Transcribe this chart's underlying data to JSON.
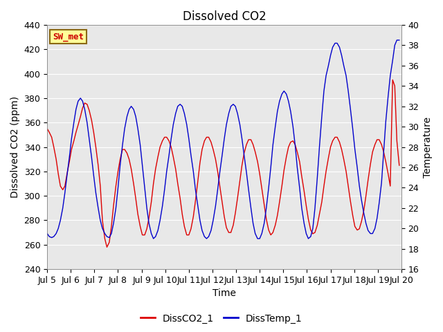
{
  "title": "Dissolved CO2",
  "xlabel": "Time",
  "ylabel_left": "Dissolved CO2 (ppm)",
  "ylabel_right": "Temperature",
  "xlim": [
    0,
    15
  ],
  "ylim_left": [
    240,
    440
  ],
  "ylim_right": [
    16,
    40
  ],
  "yticks_left": [
    240,
    260,
    280,
    300,
    320,
    340,
    360,
    380,
    400,
    420,
    440
  ],
  "yticks_right": [
    16,
    18,
    20,
    22,
    24,
    26,
    28,
    30,
    32,
    34,
    36,
    38,
    40
  ],
  "xtick_labels": [
    "Jul 5",
    "Jul 6",
    "Jul 7",
    "Jul 8",
    "Jul 9",
    "Jul 10",
    "Jul 11",
    "Jul 12",
    "Jul 13",
    "Jul 14",
    "Jul 15",
    "Jul 16",
    "Jul 17",
    "Jul 18",
    "Jul 19",
    "Jul 20"
  ],
  "xtick_positions": [
    0,
    1,
    2,
    3,
    4,
    5,
    6,
    7,
    8,
    9,
    10,
    11,
    12,
    13,
    14,
    15
  ],
  "fig_bg_color": "#ffffff",
  "plot_bg_color": "#e8e8e8",
  "grid_color": "#ffffff",
  "annotation_label": "SW_met",
  "annotation_bg": "#ffff99",
  "annotation_border": "#8B6914",
  "annotation_text_color": "#cc0000",
  "line1_color": "#dd0000",
  "line2_color": "#0000cc",
  "line1_label": "DissCO2_1",
  "line2_label": "DissTemp_1",
  "title_fontsize": 12,
  "axis_label_fontsize": 10,
  "tick_fontsize": 9,
  "legend_fontsize": 10,
  "co2_t": [
    0.0,
    0.09,
    0.19,
    0.28,
    0.38,
    0.47,
    0.56,
    0.66,
    0.75,
    0.84,
    0.94,
    1.03,
    1.13,
    1.22,
    1.31,
    1.41,
    1.5,
    1.59,
    1.69,
    1.78,
    1.88,
    1.97,
    2.06,
    2.16,
    2.25,
    2.34,
    2.44,
    2.53,
    2.63,
    2.72,
    2.81,
    2.91,
    3.0,
    3.09,
    3.19,
    3.28,
    3.38,
    3.47,
    3.56,
    3.66,
    3.75,
    3.84,
    3.94,
    4.03,
    4.13,
    4.22,
    4.31,
    4.41,
    4.5,
    4.59,
    4.69,
    4.78,
    4.88,
    4.97,
    5.06,
    5.16,
    5.25,
    5.34,
    5.44,
    5.53,
    5.63,
    5.72,
    5.81,
    5.91,
    6.0,
    6.09,
    6.19,
    6.28,
    6.38,
    6.47,
    6.56,
    6.66,
    6.75,
    6.84,
    6.94,
    7.03,
    7.13,
    7.22,
    7.31,
    7.41,
    7.5,
    7.59,
    7.69,
    7.78,
    7.88,
    7.97,
    8.06,
    8.16,
    8.25,
    8.34,
    8.44,
    8.53,
    8.63,
    8.72,
    8.81,
    8.91,
    9.0,
    9.09,
    9.19,
    9.28,
    9.38,
    9.47,
    9.56,
    9.66,
    9.75,
    9.84,
    9.94,
    10.03,
    10.13,
    10.22,
    10.31,
    10.41,
    10.5,
    10.59,
    10.69,
    10.78,
    10.88,
    10.97,
    11.06,
    11.16,
    11.25,
    11.34,
    11.44,
    11.53,
    11.63,
    11.72,
    11.81,
    11.91,
    12.0,
    12.09,
    12.19,
    12.28,
    12.38,
    12.47,
    12.56,
    12.66,
    12.75,
    12.84,
    12.94,
    13.03,
    13.13,
    13.22,
    13.31,
    13.41,
    13.5,
    13.59,
    13.69,
    13.78,
    13.88,
    13.97,
    14.06,
    14.16,
    14.25,
    14.34,
    14.44,
    14.53,
    14.63,
    14.72,
    14.81,
    14.91
  ],
  "co2_vals": [
    355,
    352,
    348,
    340,
    330,
    318,
    308,
    305,
    308,
    318,
    328,
    338,
    345,
    352,
    358,
    365,
    372,
    376,
    375,
    370,
    362,
    352,
    340,
    325,
    308,
    280,
    265,
    258,
    262,
    275,
    292,
    308,
    320,
    330,
    338,
    338,
    335,
    330,
    322,
    310,
    298,
    285,
    275,
    268,
    268,
    273,
    282,
    295,
    310,
    322,
    332,
    340,
    345,
    348,
    348,
    345,
    340,
    332,
    322,
    310,
    298,
    285,
    275,
    268,
    268,
    273,
    283,
    296,
    312,
    327,
    338,
    345,
    348,
    348,
    344,
    338,
    330,
    320,
    308,
    295,
    283,
    274,
    270,
    270,
    276,
    286,
    298,
    312,
    325,
    335,
    342,
    346,
    346,
    342,
    336,
    328,
    318,
    306,
    293,
    281,
    272,
    268,
    270,
    276,
    284,
    295,
    308,
    321,
    332,
    340,
    344,
    345,
    342,
    336,
    328,
    316,
    304,
    292,
    281,
    272,
    269,
    270,
    276,
    285,
    295,
    308,
    320,
    331,
    340,
    345,
    348,
    348,
    344,
    338,
    330,
    320,
    308,
    296,
    284,
    275,
    272,
    273,
    279,
    288,
    300,
    313,
    326,
    336,
    342,
    346,
    346,
    342,
    336,
    328,
    318,
    308,
    395,
    390,
    345,
    325
  ],
  "temp_t": [
    0.0,
    0.09,
    0.19,
    0.28,
    0.38,
    0.47,
    0.56,
    0.66,
    0.75,
    0.84,
    0.94,
    1.03,
    1.13,
    1.22,
    1.31,
    1.41,
    1.5,
    1.59,
    1.69,
    1.78,
    1.88,
    1.97,
    2.06,
    2.16,
    2.25,
    2.34,
    2.44,
    2.53,
    2.63,
    2.72,
    2.81,
    2.91,
    3.0,
    3.09,
    3.19,
    3.28,
    3.38,
    3.47,
    3.56,
    3.66,
    3.75,
    3.84,
    3.94,
    4.03,
    4.13,
    4.22,
    4.31,
    4.41,
    4.5,
    4.59,
    4.69,
    4.78,
    4.88,
    4.97,
    5.06,
    5.16,
    5.25,
    5.34,
    5.44,
    5.53,
    5.63,
    5.72,
    5.81,
    5.91,
    6.0,
    6.09,
    6.19,
    6.28,
    6.38,
    6.47,
    6.56,
    6.66,
    6.75,
    6.84,
    6.94,
    7.03,
    7.13,
    7.22,
    7.31,
    7.41,
    7.5,
    7.59,
    7.69,
    7.78,
    7.88,
    7.97,
    8.06,
    8.16,
    8.25,
    8.34,
    8.44,
    8.53,
    8.63,
    8.72,
    8.81,
    8.91,
    9.0,
    9.09,
    9.19,
    9.28,
    9.38,
    9.47,
    9.56,
    9.66,
    9.75,
    9.84,
    9.94,
    10.03,
    10.13,
    10.22,
    10.31,
    10.41,
    10.5,
    10.59,
    10.69,
    10.78,
    10.88,
    10.97,
    11.06,
    11.16,
    11.25,
    11.34,
    11.44,
    11.53,
    11.63,
    11.72,
    11.81,
    11.91,
    12.0,
    12.09,
    12.19,
    12.28,
    12.38,
    12.47,
    12.56,
    12.66,
    12.75,
    12.84,
    12.94,
    13.03,
    13.13,
    13.22,
    13.31,
    13.41,
    13.5,
    13.59,
    13.69,
    13.78,
    13.88,
    13.97,
    14.06,
    14.16,
    14.25,
    14.34,
    14.44,
    14.53,
    14.63,
    14.72,
    14.81,
    14.91
  ],
  "temp_vals": [
    19.5,
    19.2,
    19.1,
    19.2,
    19.5,
    20.0,
    20.8,
    22.0,
    23.5,
    25.2,
    27.0,
    28.8,
    30.4,
    31.7,
    32.5,
    32.8,
    32.5,
    31.7,
    30.4,
    28.8,
    27.0,
    25.2,
    23.5,
    22.0,
    20.8,
    20.0,
    19.5,
    19.2,
    19.1,
    19.5,
    20.5,
    22.0,
    24.0,
    26.2,
    28.2,
    29.8,
    31.0,
    31.7,
    32.0,
    31.7,
    31.0,
    29.8,
    28.2,
    26.2,
    24.0,
    22.0,
    20.5,
    19.5,
    19.0,
    19.2,
    19.8,
    20.8,
    22.2,
    23.8,
    25.6,
    27.2,
    28.8,
    30.2,
    31.3,
    32.0,
    32.2,
    32.0,
    31.3,
    30.2,
    28.8,
    27.2,
    25.6,
    23.8,
    22.2,
    20.8,
    19.8,
    19.2,
    19.0,
    19.2,
    19.8,
    20.8,
    22.2,
    23.8,
    25.5,
    27.2,
    28.8,
    30.2,
    31.3,
    32.0,
    32.2,
    32.0,
    31.3,
    30.2,
    28.8,
    27.2,
    25.5,
    23.8,
    22.0,
    20.5,
    19.5,
    19.0,
    19.0,
    19.5,
    20.5,
    22.0,
    24.0,
    26.0,
    28.2,
    30.0,
    31.5,
    32.5,
    33.2,
    33.5,
    33.2,
    32.5,
    31.5,
    30.0,
    28.2,
    26.0,
    24.0,
    22.0,
    20.5,
    19.5,
    19.0,
    19.2,
    20.0,
    22.0,
    25.0,
    28.0,
    31.0,
    33.5,
    35.0,
    36.0,
    37.0,
    37.8,
    38.2,
    38.2,
    37.8,
    37.0,
    36.0,
    35.0,
    33.5,
    31.8,
    29.8,
    27.8,
    26.0,
    24.2,
    22.8,
    21.5,
    20.5,
    19.8,
    19.5,
    19.5,
    20.0,
    21.0,
    22.5,
    24.5,
    27.5,
    30.5,
    33.0,
    35.0,
    36.5,
    38.0,
    38.5,
    38.5
  ]
}
